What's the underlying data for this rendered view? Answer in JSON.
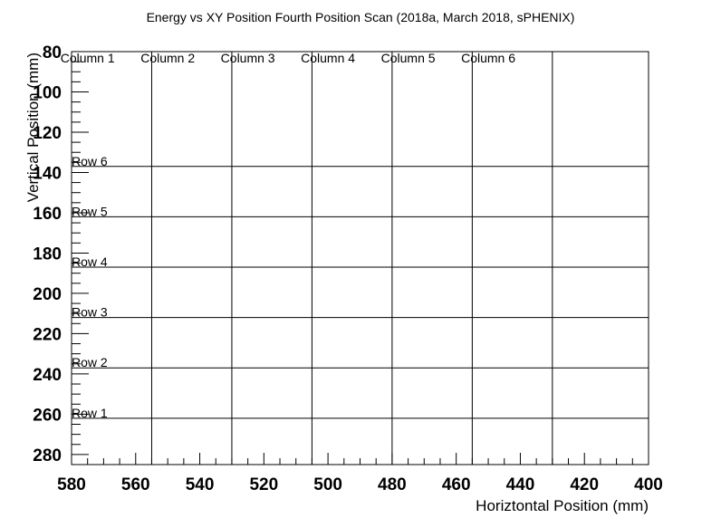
{
  "chart_data": {
    "type": "heatmap",
    "title": "Energy vs XY Position Fourth Position Scan (2018a, March 2018, sPHENIX)",
    "xlabel": "Horiztontal Position (mm)",
    "ylabel": "Vertical Position (mm)",
    "xlim": [
      580,
      400
    ],
    "ylim": [
      80,
      285
    ],
    "x_ticks": [
      580,
      560,
      540,
      520,
      500,
      480,
      460,
      440,
      420,
      400
    ],
    "y_ticks": [
      80,
      100,
      120,
      140,
      160,
      180,
      200,
      220,
      240,
      260,
      280
    ],
    "x_reversed": true,
    "y_reversed": true,
    "grid": false,
    "column_boundaries": [
      555,
      530,
      505,
      480,
      455,
      430
    ],
    "row_boundaries": [
      137,
      162,
      187,
      212,
      237,
      262
    ],
    "columns": [
      {
        "label": "Column 1",
        "x": 575
      },
      {
        "label": "Column 2",
        "x": 550
      },
      {
        "label": "Column 3",
        "x": 525
      },
      {
        "label": "Column 4",
        "x": 500
      },
      {
        "label": "Column 5",
        "x": 475
      },
      {
        "label": "Column 6",
        "x": 450
      }
    ],
    "rows": [
      {
        "label": "Row 6",
        "y": 137
      },
      {
        "label": "Row 5",
        "y": 162
      },
      {
        "label": "Row 4",
        "y": 187
      },
      {
        "label": "Row 3",
        "y": 212
      },
      {
        "label": "Row 2",
        "y": 237
      },
      {
        "label": "Row 1",
        "y": 262
      }
    ]
  }
}
